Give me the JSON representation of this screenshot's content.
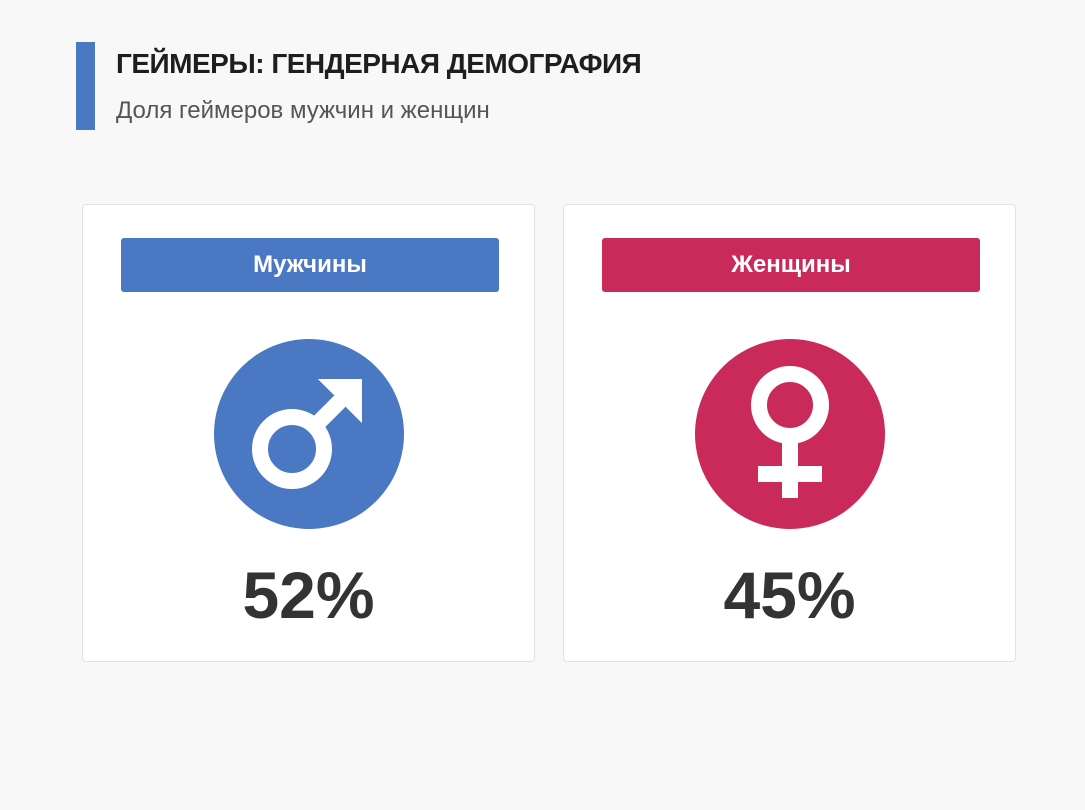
{
  "header": {
    "title": "ГЕЙМЕРЫ: ГЕНДЕРНАЯ ДЕМОГРАФИЯ",
    "subtitle": "Доля геймеров мужчин и женщин",
    "accent_color": "#4a78c2"
  },
  "cards": [
    {
      "label": "Мужчины",
      "value_text": "52%",
      "value": 52,
      "icon": "male-symbol-icon",
      "color": "#4a78c2"
    },
    {
      "label": "Женщины",
      "value_text": "45%",
      "value": 45,
      "icon": "female-symbol-icon",
      "color": "#c92a5a"
    }
  ],
  "chart_data": {
    "type": "bar",
    "categories": [
      "Мужчины",
      "Женщины"
    ],
    "values": [
      52,
      45
    ],
    "title": "ГЕЙМЕРЫ: ГЕНДЕРНАЯ ДЕМОГРАФИЯ",
    "subtitle": "Доля геймеров мужчин и женщин",
    "unit": "%"
  }
}
